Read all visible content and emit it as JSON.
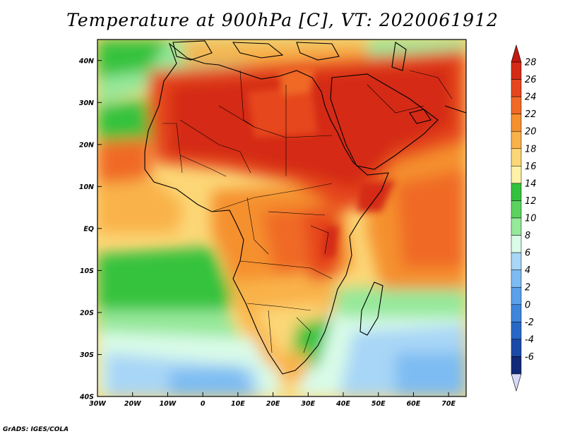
{
  "title": "Temperature at 900hPa [C], VT: 2020061912",
  "credit": "GrADS: IGES/COLA",
  "map": {
    "lon_range": [
      -30,
      75
    ],
    "lat_range": [
      -40,
      45
    ],
    "x_ticks": [
      "30W",
      "20W",
      "10W",
      "0",
      "10E",
      "20E",
      "30E",
      "40E",
      "50E",
      "60E",
      "70E"
    ],
    "y_ticks": [
      "40S",
      "30S",
      "20S",
      "10S",
      "EQ",
      "10N",
      "20N",
      "30N",
      "40N"
    ]
  },
  "colorbar": {
    "labels": [
      "28",
      "26",
      "24",
      "22",
      "20",
      "18",
      "16",
      "14",
      "12",
      "10",
      "8",
      "6",
      "4",
      "2",
      "0",
      "-2",
      "-4",
      "-6"
    ],
    "colors": [
      "#d42a16",
      "#e6461e",
      "#f06a26",
      "#f5902e",
      "#f9b24a",
      "#fcd777",
      "#fff2a8",
      "#34c23c",
      "#5bd35e",
      "#96e89a",
      "#d9fbe8",
      "#a8d6f6",
      "#7dbcf2",
      "#5aa0ea",
      "#3d86dc",
      "#2768c6",
      "#1b49a8",
      "#12297a"
    ],
    "top_triangle_color": "#c21a10",
    "bottom_triangle_color": "#d6d9f7"
  }
}
